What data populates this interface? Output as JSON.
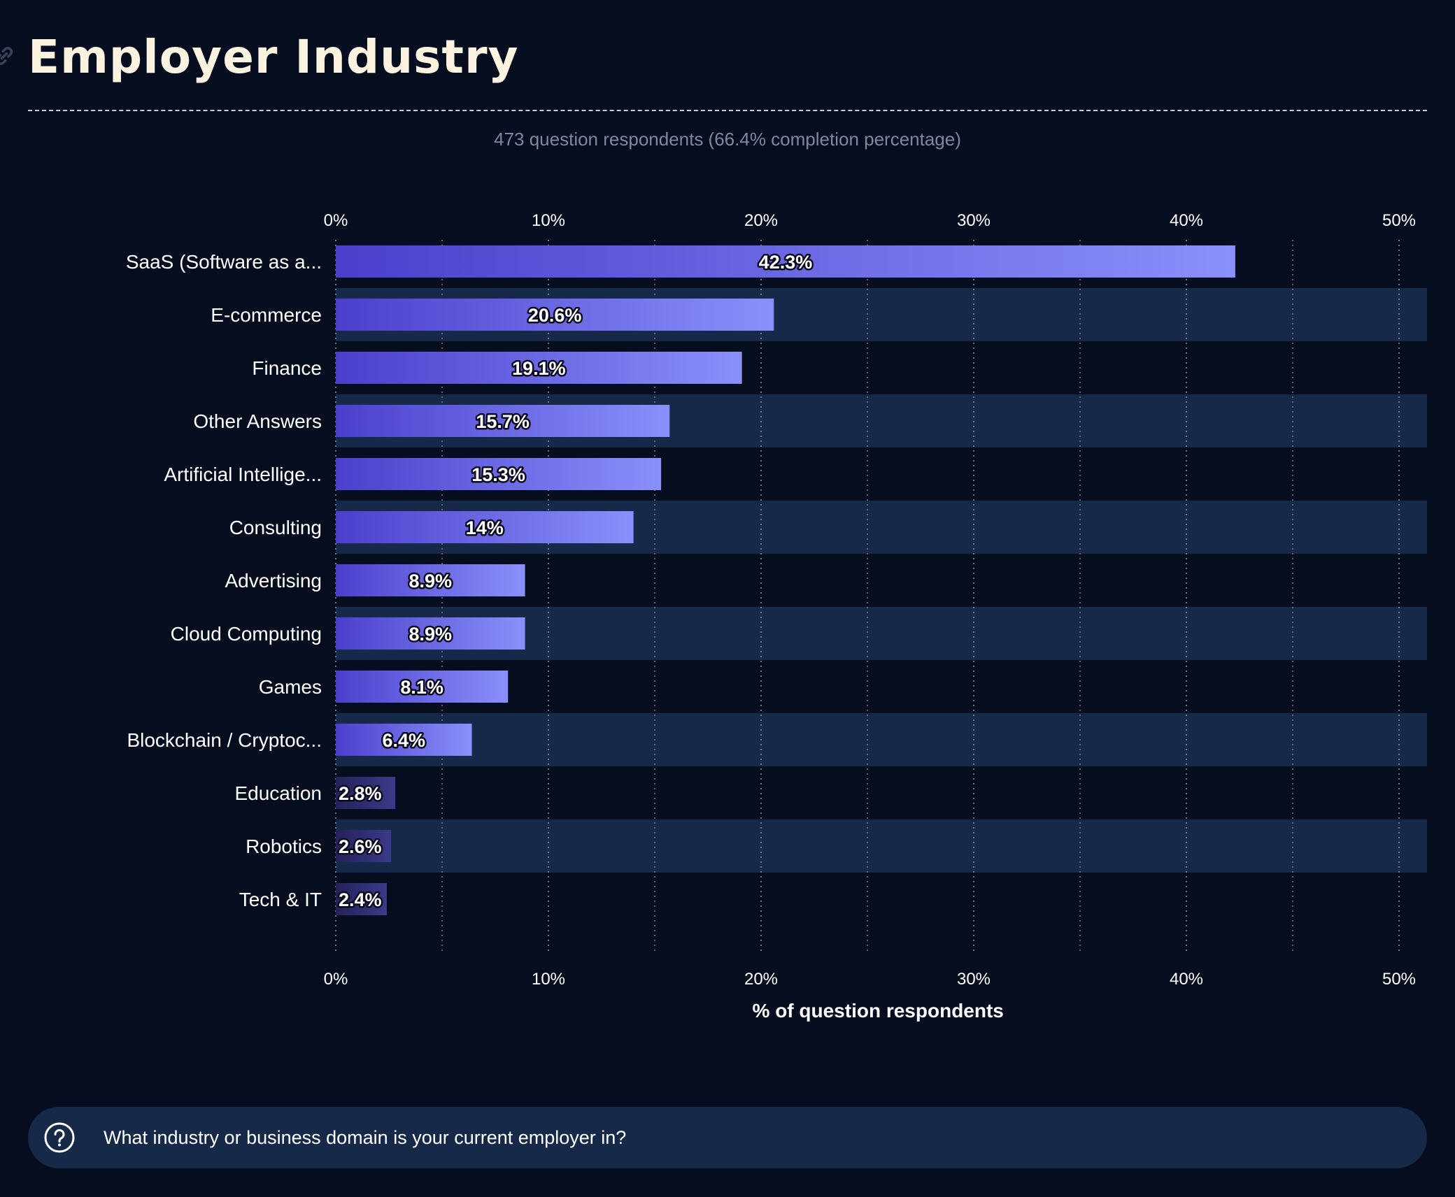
{
  "page": {
    "title": "Employer Industry",
    "subtitle": "473 question respondents (66.4% completion percentage)",
    "question": "What industry or business domain is your current employer in?",
    "icons": {
      "title_icon": "link-icon",
      "question_icon": "question-circle-icon"
    }
  },
  "colors": {
    "background": "#050d1f",
    "stripe": "#172949",
    "bar_gradient_start": "#4b3fcc",
    "bar_gradient_end": "#8a90fb",
    "small_bar_start": "#25215a",
    "small_bar_end": "#3a3a8a",
    "title_color": "#fbf2df",
    "subtitle_color": "#7f889e"
  },
  "chart_data": {
    "type": "bar",
    "orientation": "horizontal",
    "categories": [
      "SaaS (Software as a...",
      "E-commerce",
      "Finance",
      "Other Answers",
      "Artificial Intellige...",
      "Consulting",
      "Advertising",
      "Cloud Computing",
      "Games",
      "Blockchain / Cryptoc...",
      "Education",
      "Robotics",
      "Tech & IT"
    ],
    "values": [
      42.3,
      20.6,
      19.1,
      15.7,
      15.3,
      14,
      8.9,
      8.9,
      8.1,
      6.4,
      2.8,
      2.6,
      2.4
    ],
    "value_labels": [
      "42.3%",
      "20.6%",
      "19.1%",
      "15.7%",
      "15.3%",
      "14%",
      "8.9%",
      "8.9%",
      "8.1%",
      "6.4%",
      "2.8%",
      "2.6%",
      "2.4%"
    ],
    "ticks": [
      0,
      10,
      20,
      30,
      40,
      50
    ],
    "tick_labels": [
      "0%",
      "10%",
      "20%",
      "30%",
      "40%",
      "50%"
    ],
    "xlim": [
      0,
      51.3
    ],
    "xlabel": "% of question respondents",
    "ylabel": "",
    "grid": "vertical dotted lines at every 5%",
    "axis_labels_position": "top and bottom"
  }
}
